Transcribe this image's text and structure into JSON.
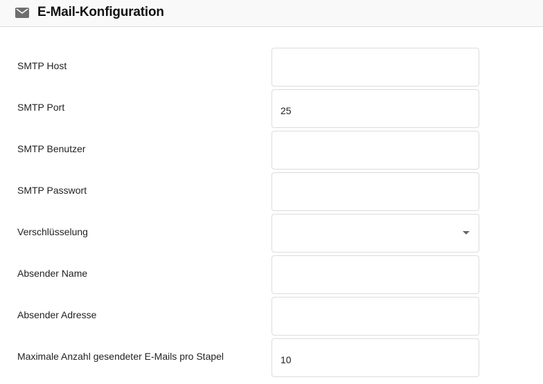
{
  "header": {
    "title": "E-Mail-Konfiguration",
    "icon": "mail-icon"
  },
  "fields": [
    {
      "label": "SMTP Host",
      "value": ""
    },
    {
      "label": "SMTP Port",
      "value": "25"
    },
    {
      "label": "SMTP Benutzer",
      "value": ""
    },
    {
      "label": "SMTP Passwort",
      "value": ""
    },
    {
      "label": "Verschlüsselung",
      "value": "",
      "type": "select"
    },
    {
      "label": "Absender Name",
      "value": ""
    },
    {
      "label": "Absender Adresse",
      "value": ""
    },
    {
      "label": "Maximale Anzahl gesendeter E-Mails pro Stapel",
      "value": "10"
    }
  ]
}
